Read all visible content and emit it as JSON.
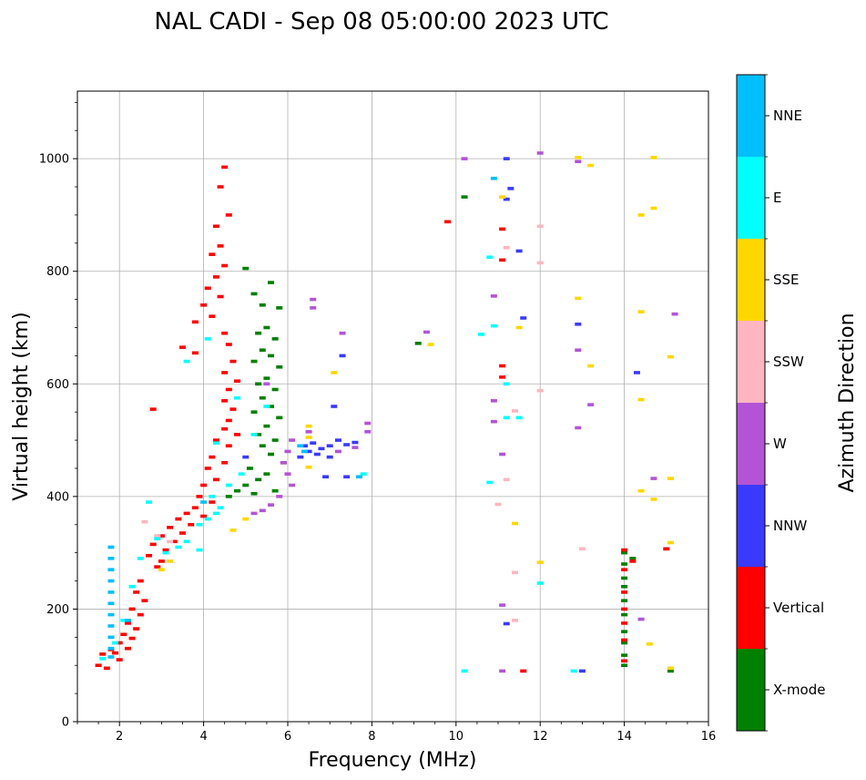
{
  "chart_data": {
    "type": "scatter",
    "title": "NAL CADI - Sep 08 05:00:00 2023 UTC",
    "xlabel": "Frequency (MHz)",
    "ylabel": "Virtual height (km)",
    "xlim": [
      1,
      16
    ],
    "ylim": [
      0,
      1120
    ],
    "xticks": [
      2,
      4,
      6,
      8,
      10,
      12,
      14,
      16
    ],
    "yticks": [
      0,
      200,
      400,
      600,
      800,
      1000
    ],
    "grid": true,
    "colorbar": {
      "label": "Azimuth Direction",
      "categories": [
        {
          "name": "X-mode",
          "color": "#008000"
        },
        {
          "name": "Vertical",
          "color": "#ff0000"
        },
        {
          "name": "NNW",
          "color": "#3a3aff"
        },
        {
          "name": "W",
          "color": "#b354d6"
        },
        {
          "name": "SSW",
          "color": "#ffb6c1"
        },
        {
          "name": "SSE",
          "color": "#ffd700"
        },
        {
          "name": "E",
          "color": "#00ffff"
        },
        {
          "name": "NNE",
          "color": "#00bfff"
        }
      ]
    },
    "series": [
      {
        "name": "X-mode",
        "points": [
          [
            5.0,
            805
          ],
          [
            5.2,
            760
          ],
          [
            5.4,
            740
          ],
          [
            5.6,
            780
          ],
          [
            5.8,
            735
          ],
          [
            5.5,
            700
          ],
          [
            5.3,
            690
          ],
          [
            5.7,
            680
          ],
          [
            5.4,
            660
          ],
          [
            5.6,
            650
          ],
          [
            5.2,
            640
          ],
          [
            5.8,
            630
          ],
          [
            5.5,
            610
          ],
          [
            5.3,
            600
          ],
          [
            5.7,
            590
          ],
          [
            5.4,
            575
          ],
          [
            5.6,
            560
          ],
          [
            5.2,
            550
          ],
          [
            5.8,
            540
          ],
          [
            5.5,
            525
          ],
          [
            5.3,
            510
          ],
          [
            5.7,
            500
          ],
          [
            5.4,
            490
          ],
          [
            5.6,
            475
          ],
          [
            5.9,
            460
          ],
          [
            5.1,
            450
          ],
          [
            5.5,
            440
          ],
          [
            5.3,
            430
          ],
          [
            5.0,
            420
          ],
          [
            4.8,
            410
          ],
          [
            4.6,
            400
          ],
          [
            5.7,
            410
          ],
          [
            5.2,
            405
          ],
          [
            10.2,
            932
          ],
          [
            9.1,
            672
          ],
          [
            14.0,
            300
          ],
          [
            14.0,
            280
          ],
          [
            14.0,
            255
          ],
          [
            14.0,
            240
          ],
          [
            14.0,
            215
          ],
          [
            14.0,
            190
          ],
          [
            14.0,
            160
          ],
          [
            14.0,
            140
          ],
          [
            14.0,
            118
          ],
          [
            14.0,
            100
          ],
          [
            14.2,
            290
          ],
          [
            15.1,
            90
          ]
        ]
      },
      {
        "name": "Vertical",
        "points": [
          [
            4.5,
            985
          ],
          [
            4.4,
            950
          ],
          [
            4.6,
            900
          ],
          [
            4.3,
            880
          ],
          [
            4.4,
            845
          ],
          [
            4.2,
            830
          ],
          [
            4.5,
            810
          ],
          [
            4.3,
            790
          ],
          [
            4.1,
            770
          ],
          [
            4.4,
            755
          ],
          [
            4.0,
            740
          ],
          [
            4.2,
            720
          ],
          [
            3.8,
            710
          ],
          [
            4.5,
            690
          ],
          [
            4.6,
            670
          ],
          [
            3.5,
            665
          ],
          [
            3.8,
            655
          ],
          [
            4.7,
            640
          ],
          [
            4.5,
            620
          ],
          [
            4.8,
            605
          ],
          [
            4.6,
            590
          ],
          [
            4.5,
            570
          ],
          [
            4.7,
            555
          ],
          [
            4.6,
            535
          ],
          [
            4.5,
            520
          ],
          [
            4.8,
            510
          ],
          [
            4.3,
            500
          ],
          [
            4.6,
            490
          ],
          [
            4.2,
            470
          ],
          [
            4.5,
            460
          ],
          [
            4.1,
            450
          ],
          [
            4.3,
            430
          ],
          [
            4.0,
            420
          ],
          [
            3.9,
            400
          ],
          [
            4.2,
            390
          ],
          [
            3.8,
            380
          ],
          [
            3.6,
            370
          ],
          [
            4.0,
            365
          ],
          [
            3.4,
            360
          ],
          [
            3.7,
            350
          ],
          [
            3.2,
            345
          ],
          [
            3.5,
            335
          ],
          [
            3.0,
            330
          ],
          [
            3.3,
            320
          ],
          [
            2.8,
            315
          ],
          [
            3.1,
            305
          ],
          [
            2.7,
            295
          ],
          [
            3.0,
            285
          ],
          [
            2.9,
            275
          ],
          [
            2.5,
            250
          ],
          [
            2.4,
            230
          ],
          [
            2.6,
            215
          ],
          [
            2.3,
            200
          ],
          [
            2.5,
            190
          ],
          [
            2.2,
            175
          ],
          [
            2.4,
            165
          ],
          [
            2.1,
            155
          ],
          [
            2.3,
            148
          ],
          [
            2.0,
            140
          ],
          [
            2.2,
            130
          ],
          [
            1.8,
            128
          ],
          [
            1.9,
            122
          ],
          [
            1.6,
            120
          ],
          [
            2.0,
            110
          ],
          [
            1.5,
            100
          ],
          [
            1.7,
            95
          ],
          [
            2.8,
            555
          ],
          [
            9.8,
            888
          ],
          [
            11.1,
            875
          ],
          [
            11.1,
            820
          ],
          [
            11.1,
            632
          ],
          [
            11.1,
            612
          ],
          [
            11.6,
            90
          ],
          [
            14.0,
            305
          ],
          [
            14.2,
            285
          ],
          [
            14.0,
            270
          ],
          [
            14.0,
            230
          ],
          [
            14.0,
            200
          ],
          [
            14.0,
            175
          ],
          [
            14.0,
            145
          ],
          [
            14.0,
            108
          ],
          [
            15.0,
            307
          ]
        ]
      },
      {
        "name": "NNW",
        "points": [
          [
            6.4,
            490
          ],
          [
            6.5,
            480
          ],
          [
            6.6,
            495
          ],
          [
            6.8,
            485
          ],
          [
            7.0,
            490
          ],
          [
            6.7,
            475
          ],
          [
            7.2,
            500
          ],
          [
            7.4,
            492
          ],
          [
            7.6,
            496
          ],
          [
            6.3,
            470
          ],
          [
            7.0,
            470
          ],
          [
            7.4,
            435
          ],
          [
            6.9,
            435
          ],
          [
            7.1,
            560
          ],
          [
            7.3,
            650
          ],
          [
            11.2,
            1000
          ],
          [
            11.3,
            947
          ],
          [
            11.2,
            928
          ],
          [
            11.5,
            836
          ],
          [
            11.6,
            717
          ],
          [
            12.9,
            706
          ],
          [
            13.0,
            90
          ],
          [
            11.2,
            174
          ],
          [
            14.3,
            620
          ],
          [
            5.0,
            470
          ]
        ]
      },
      {
        "name": "W",
        "points": [
          [
            5.9,
            460
          ],
          [
            6.0,
            440
          ],
          [
            6.1,
            420
          ],
          [
            5.8,
            400
          ],
          [
            5.6,
            385
          ],
          [
            5.4,
            375
          ],
          [
            5.2,
            370
          ],
          [
            6.0,
            480
          ],
          [
            6.1,
            500
          ],
          [
            6.6,
            750
          ],
          [
            6.6,
            735
          ],
          [
            6.5,
            515
          ],
          [
            7.2,
            480
          ],
          [
            7.6,
            487
          ],
          [
            7.9,
            530
          ],
          [
            7.9,
            515
          ],
          [
            7.3,
            690
          ],
          [
            9.3,
            692
          ],
          [
            10.2,
            1000
          ],
          [
            10.9,
            756
          ],
          [
            10.9,
            570
          ],
          [
            10.9,
            533
          ],
          [
            11.1,
            475
          ],
          [
            11.1,
            207
          ],
          [
            11.1,
            90
          ],
          [
            12.0,
            1010
          ],
          [
            12.9,
            995
          ],
          [
            12.9,
            660
          ],
          [
            12.9,
            522
          ],
          [
            13.2,
            563
          ],
          [
            14.7,
            432
          ],
          [
            14.4,
            182
          ],
          [
            15.2,
            724
          ],
          [
            5.5,
            600
          ]
        ]
      },
      {
        "name": "SSW",
        "points": [
          [
            11.2,
            842
          ],
          [
            11.0,
            386
          ],
          [
            11.2,
            430
          ],
          [
            11.4,
            552
          ],
          [
            11.4,
            180
          ],
          [
            12.0,
            880
          ],
          [
            12.0,
            815
          ],
          [
            12.0,
            588
          ],
          [
            11.4,
            265
          ],
          [
            13.0,
            307
          ],
          [
            2.9,
            330
          ],
          [
            2.6,
            355
          ],
          [
            3.2,
            320
          ]
        ]
      },
      {
        "name": "SSE",
        "points": [
          [
            6.5,
            525
          ],
          [
            6.5,
            505
          ],
          [
            6.5,
            452
          ],
          [
            7.1,
            620
          ],
          [
            9.4,
            670
          ],
          [
            11.1,
            932
          ],
          [
            11.5,
            700
          ],
          [
            11.4,
            352
          ],
          [
            12.0,
            283
          ],
          [
            12.9,
            1002
          ],
          [
            12.9,
            752
          ],
          [
            13.2,
            632
          ],
          [
            13.2,
            988
          ],
          [
            14.4,
            900
          ],
          [
            14.4,
            728
          ],
          [
            14.4,
            572
          ],
          [
            14.4,
            410
          ],
          [
            14.7,
            1002
          ],
          [
            14.7,
            912
          ],
          [
            14.7,
            395
          ],
          [
            15.1,
            648
          ],
          [
            15.1,
            432
          ],
          [
            15.1,
            318
          ],
          [
            15.1,
            95
          ],
          [
            14.6,
            138
          ],
          [
            3.0,
            270
          ],
          [
            3.2,
            285
          ],
          [
            5.0,
            360
          ],
          [
            4.7,
            340
          ]
        ]
      },
      {
        "name": "E",
        "points": [
          [
            4.1,
            360
          ],
          [
            4.3,
            370
          ],
          [
            3.9,
            350
          ],
          [
            4.4,
            380
          ],
          [
            3.6,
            320
          ],
          [
            3.9,
            305
          ],
          [
            3.4,
            310
          ],
          [
            3.1,
            300
          ],
          [
            2.9,
            325
          ],
          [
            4.2,
            400
          ],
          [
            4.6,
            420
          ],
          [
            4.9,
            440
          ],
          [
            4.3,
            495
          ],
          [
            5.2,
            510
          ],
          [
            5.5,
            560
          ],
          [
            4.8,
            575
          ],
          [
            4.1,
            680
          ],
          [
            10.8,
            825
          ],
          [
            10.9,
            703
          ],
          [
            10.8,
            425
          ],
          [
            10.6,
            688
          ],
          [
            11.2,
            600
          ],
          [
            11.2,
            540
          ],
          [
            11.5,
            540
          ],
          [
            12.0,
            246
          ],
          [
            12.8,
            90
          ],
          [
            10.2,
            90
          ],
          [
            2.7,
            390
          ],
          [
            2.5,
            290
          ],
          [
            2.3,
            240
          ],
          [
            2.1,
            180
          ],
          [
            1.9,
            140
          ],
          [
            1.6,
            112
          ],
          [
            3.6,
            640
          ],
          [
            7.8,
            440
          ]
        ]
      },
      {
        "name": "NNE",
        "points": [
          [
            1.8,
            310
          ],
          [
            1.8,
            290
          ],
          [
            1.8,
            270
          ],
          [
            1.8,
            250
          ],
          [
            1.8,
            230
          ],
          [
            1.8,
            210
          ],
          [
            1.8,
            190
          ],
          [
            1.8,
            170
          ],
          [
            1.8,
            150
          ],
          [
            1.8,
            130
          ],
          [
            1.8,
            115
          ],
          [
            2.2,
            180
          ],
          [
            10.9,
            965
          ],
          [
            6.3,
            490
          ],
          [
            6.4,
            480
          ],
          [
            7.7,
            435
          ],
          [
            4.0,
            390
          ]
        ]
      }
    ]
  }
}
